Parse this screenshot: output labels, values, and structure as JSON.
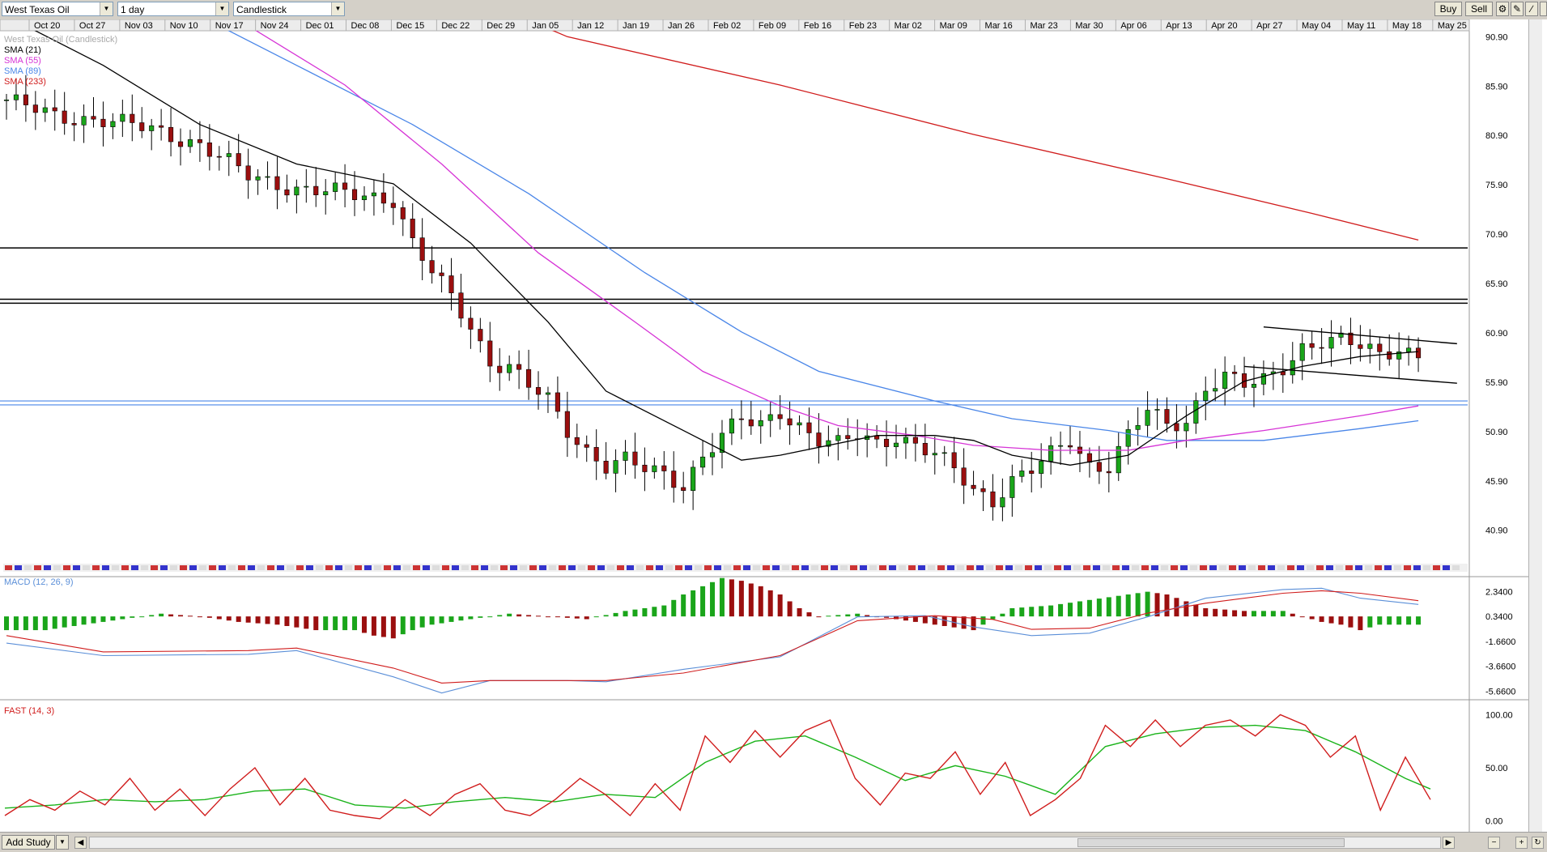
{
  "toolbar": {
    "instrument": "West Texas Oil",
    "interval": "1 day",
    "chart_style": "Candlestick",
    "buy_label": "Buy",
    "sell_label": "Sell",
    "icons": [
      "gear-icon",
      "pencil-icon",
      "arrow-icon",
      "slash-icon",
      "cursor-icon"
    ]
  },
  "bottom": {
    "add_study_label": "Add Study"
  },
  "colors": {
    "up": "#1aa51a",
    "down": "#9b0f0f",
    "sma21": "#000000",
    "sma55": "#d633d6",
    "sma89": "#4a86e8",
    "sma233": "#d01c1c",
    "macd_line": "#5b8fd8",
    "macd_signal": "#d01c1c",
    "stoch_k": "#d01c1c",
    "stoch_d": "#1ab31a"
  },
  "chart_data": [
    {
      "type": "candlestick",
      "name": "price-pane",
      "title": "West Texas Oil (Candlestick)",
      "legend": [
        "West Texas Oil (Candlestick)",
        "SMA (21)",
        "SMA (55)",
        "SMA (89)",
        "SMA (233)"
      ],
      "xlabels": [
        "Oct 20",
        "Oct 27",
        "Nov 03",
        "Nov 10",
        "Nov 17",
        "Nov 24",
        "Dec 01",
        "Dec 08",
        "Dec 15",
        "Dec 22",
        "Dec 29",
        "Jan 05",
        "Jan 12",
        "Jan 19",
        "Jan 26",
        "Feb 02",
        "Feb 09",
        "Feb 16",
        "Feb 23",
        "Mar 02",
        "Mar 09",
        "Mar 16",
        "Mar 23",
        "Mar 30",
        "Apr 06",
        "Apr 13",
        "Apr 20",
        "Apr 27",
        "May 04",
        "May 11",
        "May 18",
        "May 25"
      ],
      "yticks": [
        "90.90",
        "85.90",
        "80.90",
        "75.90",
        "70.90",
        "65.90",
        "60.90",
        "55.90",
        "50.90",
        "45.90",
        "40.90"
      ],
      "ylim": [
        38.5,
        91.5
      ],
      "close_points": [
        [
          0,
          84.5
        ],
        [
          5,
          82.8
        ],
        [
          10,
          82.5
        ],
        [
          15,
          81.5
        ],
        [
          20,
          80.0
        ],
        [
          25,
          76.8
        ],
        [
          30,
          75.5
        ],
        [
          35,
          75.0
        ],
        [
          40,
          74.5
        ],
        [
          42,
          70.0
        ],
        [
          44,
          67.0
        ],
        [
          46,
          64.5
        ],
        [
          48,
          61.5
        ],
        [
          50,
          58.0
        ],
        [
          52,
          57.5
        ],
        [
          54,
          55.5
        ],
        [
          56,
          54.0
        ],
        [
          58,
          51.0
        ],
        [
          60,
          49.0
        ],
        [
          62,
          47.5
        ],
        [
          64,
          48.0
        ],
        [
          66,
          47.0
        ],
        [
          68,
          46.5
        ],
        [
          70,
          45.5
        ],
        [
          72,
          48.5
        ],
        [
          74,
          50.5
        ],
        [
          76,
          52.0
        ],
        [
          78,
          51.5
        ],
        [
          80,
          53.0
        ],
        [
          82,
          51.5
        ],
        [
          84,
          50.0
        ],
        [
          86,
          49.5
        ],
        [
          88,
          50.5
        ],
        [
          90,
          49.8
        ],
        [
          92,
          50.5
        ],
        [
          94,
          49.5
        ],
        [
          96,
          48.5
        ],
        [
          98,
          47.0
        ],
        [
          100,
          45.0
        ],
        [
          102,
          44.0
        ],
        [
          104,
          46.0
        ],
        [
          106,
          47.0
        ],
        [
          108,
          48.5
        ],
        [
          110,
          50.0
        ],
        [
          112,
          47.5
        ],
        [
          114,
          47.5
        ],
        [
          116,
          50.5
        ],
        [
          118,
          53.0
        ],
        [
          120,
          51.5
        ],
        [
          122,
          52.0
        ],
        [
          124,
          55.5
        ],
        [
          126,
          56.5
        ],
        [
          128,
          55.5
        ],
        [
          130,
          56.0
        ],
        [
          132,
          57.5
        ],
        [
          134,
          59.5
        ],
        [
          136,
          60.0
        ],
        [
          138,
          60.0
        ],
        [
          140,
          59.5
        ],
        [
          142,
          58.8
        ],
        [
          144,
          59.5
        ],
        [
          146,
          58.5
        ]
      ],
      "sma": {
        "sma21": [
          [
            0,
            93
          ],
          [
            10,
            88
          ],
          [
            20,
            82
          ],
          [
            30,
            78
          ],
          [
            40,
            76
          ],
          [
            48,
            70
          ],
          [
            56,
            62
          ],
          [
            62,
            55
          ],
          [
            70,
            51
          ],
          [
            76,
            48
          ],
          [
            80,
            48.5
          ],
          [
            90,
            50.5
          ],
          [
            96,
            50.5
          ],
          [
            100,
            50.0
          ],
          [
            104,
            48.5
          ],
          [
            110,
            47.5
          ],
          [
            116,
            48.5
          ],
          [
            122,
            52.5
          ],
          [
            128,
            56.0
          ],
          [
            134,
            57.5
          ],
          [
            140,
            58.5
          ],
          [
            146,
            59.0
          ]
        ],
        "sma55": [
          [
            0,
            100
          ],
          [
            20,
            95
          ],
          [
            35,
            86
          ],
          [
            45,
            78
          ],
          [
            55,
            69
          ],
          [
            65,
            62
          ],
          [
            72,
            57
          ],
          [
            80,
            53.5
          ],
          [
            86,
            51.5
          ],
          [
            94,
            50.5
          ],
          [
            100,
            49.5
          ],
          [
            108,
            49.0
          ],
          [
            116,
            49.0
          ],
          [
            122,
            50.0
          ],
          [
            130,
            51.0
          ],
          [
            140,
            52.5
          ],
          [
            146,
            53.5
          ]
        ],
        "sma89": [
          [
            0,
            110
          ],
          [
            22,
            92
          ],
          [
            30,
            88
          ],
          [
            42,
            82
          ],
          [
            54,
            75
          ],
          [
            66,
            67
          ],
          [
            76,
            61
          ],
          [
            84,
            57
          ],
          [
            96,
            54
          ],
          [
            104,
            52.2
          ],
          [
            114,
            51.0
          ],
          [
            120,
            50.0
          ],
          [
            130,
            50.0
          ],
          [
            140,
            51.2
          ],
          [
            146,
            52.0
          ]
        ],
        "sma233": [
          [
            0,
            115
          ],
          [
            58,
            90.9
          ],
          [
            80,
            86
          ],
          [
            100,
            81
          ],
          [
            120,
            76.5
          ],
          [
            135,
            73
          ],
          [
            146,
            70.3
          ]
        ]
      },
      "horizontal_lines": [
        69.5,
        64.3,
        63.9,
        54.0,
        53.6
      ],
      "channel": {
        "upper": [
          [
            130,
            61.5
          ],
          [
            150,
            59.8
          ]
        ],
        "lower": [
          [
            128,
            57.5
          ],
          [
            150,
            55.8
          ]
        ]
      }
    },
    {
      "type": "macd",
      "name": "macd-pane",
      "title": "MACD (12, 26, 9)",
      "yticks": [
        "2.3400",
        "0.3400",
        "-1.6600",
        "-3.6600",
        "-5.6600"
      ],
      "ylim": [
        -6.6,
        3.4
      ],
      "macd_line": [
        [
          0,
          -1.8
        ],
        [
          10,
          -2.8
        ],
        [
          25,
          -2.7
        ],
        [
          30,
          -2.4
        ],
        [
          40,
          -4.5
        ],
        [
          45,
          -5.8
        ],
        [
          50,
          -4.8
        ],
        [
          58,
          -4.8
        ],
        [
          62,
          -4.9
        ],
        [
          70,
          -3.9
        ],
        [
          80,
          -2.9
        ],
        [
          88,
          0.3
        ],
        [
          95,
          0.4
        ],
        [
          100,
          -0.5
        ],
        [
          106,
          -1.2
        ],
        [
          112,
          -1.0
        ],
        [
          118,
          0.3
        ],
        [
          124,
          1.8
        ],
        [
          132,
          2.5
        ],
        [
          136,
          2.6
        ],
        [
          140,
          1.8
        ],
        [
          146,
          1.3
        ]
      ],
      "signal_line": [
        [
          0,
          -1.2
        ],
        [
          10,
          -2.5
        ],
        [
          25,
          -2.4
        ],
        [
          30,
          -2.2
        ],
        [
          40,
          -3.8
        ],
        [
          45,
          -5.0
        ],
        [
          50,
          -4.8
        ],
        [
          62,
          -4.8
        ],
        [
          70,
          -4.2
        ],
        [
          80,
          -2.8
        ],
        [
          88,
          0.0
        ],
        [
          96,
          0.4
        ],
        [
          102,
          0.1
        ],
        [
          106,
          -0.7
        ],
        [
          112,
          -0.6
        ],
        [
          118,
          0.6
        ],
        [
          124,
          1.4
        ],
        [
          132,
          2.2
        ],
        [
          136,
          2.4
        ],
        [
          140,
          2.2
        ],
        [
          146,
          1.6
        ]
      ],
      "histogram": [
        [
          0,
          -0.5
        ],
        [
          4,
          -0.5
        ],
        [
          8,
          -0.3
        ],
        [
          12,
          -0.1
        ],
        [
          16,
          0.1
        ],
        [
          20,
          0.0
        ],
        [
          24,
          -0.2
        ],
        [
          28,
          -0.3
        ],
        [
          32,
          -0.5
        ],
        [
          36,
          -0.5
        ],
        [
          38,
          -0.7
        ],
        [
          40,
          -0.8
        ],
        [
          42,
          -0.5
        ],
        [
          44,
          -0.3
        ],
        [
          48,
          -0.1
        ],
        [
          52,
          0.1
        ],
        [
          56,
          0.0
        ],
        [
          60,
          -0.1
        ],
        [
          64,
          0.2
        ],
        [
          68,
          0.4
        ],
        [
          70,
          0.8
        ],
        [
          72,
          1.1
        ],
        [
          74,
          1.4
        ],
        [
          76,
          1.3
        ],
        [
          78,
          1.1
        ],
        [
          80,
          0.8
        ],
        [
          82,
          0.3
        ],
        [
          84,
          0.0
        ],
        [
          88,
          0.1
        ],
        [
          92,
          -0.1
        ],
        [
          96,
          -0.3
        ],
        [
          100,
          -0.5
        ],
        [
          104,
          0.3
        ],
        [
          108,
          0.4
        ],
        [
          112,
          0.6
        ],
        [
          116,
          0.8
        ],
        [
          118,
          0.9
        ],
        [
          120,
          0.8
        ],
        [
          124,
          0.3
        ],
        [
          128,
          0.2
        ],
        [
          132,
          0.2
        ],
        [
          136,
          -0.2
        ],
        [
          138,
          -0.3
        ],
        [
          140,
          -0.5
        ],
        [
          142,
          -0.3
        ],
        [
          146,
          -0.3
        ]
      ]
    },
    {
      "type": "stochastic",
      "name": "stochastic-pane",
      "title": "FAST (14, 3)",
      "yticks": [
        "100.00",
        "50.00",
        "0.00"
      ],
      "ylim": [
        -8,
        108
      ],
      "k_line": [
        [
          0,
          5
        ],
        [
          3,
          20
        ],
        [
          6,
          10
        ],
        [
          9,
          28
        ],
        [
          12,
          15
        ],
        [
          15,
          40
        ],
        [
          18,
          10
        ],
        [
          21,
          30
        ],
        [
          24,
          5
        ],
        [
          27,
          30
        ],
        [
          30,
          50
        ],
        [
          33,
          15
        ],
        [
          36,
          40
        ],
        [
          39,
          10
        ],
        [
          42,
          5
        ],
        [
          45,
          2
        ],
        [
          48,
          20
        ],
        [
          51,
          5
        ],
        [
          54,
          25
        ],
        [
          57,
          35
        ],
        [
          60,
          10
        ],
        [
          63,
          5
        ],
        [
          66,
          20
        ],
        [
          69,
          40
        ],
        [
          72,
          25
        ],
        [
          75,
          5
        ],
        [
          78,
          35
        ],
        [
          81,
          10
        ],
        [
          84,
          80
        ],
        [
          87,
          55
        ],
        [
          90,
          85
        ],
        [
          93,
          60
        ],
        [
          96,
          85
        ],
        [
          99,
          95
        ],
        [
          102,
          40
        ],
        [
          105,
          15
        ],
        [
          108,
          45
        ],
        [
          111,
          40
        ],
        [
          114,
          65
        ],
        [
          117,
          25
        ],
        [
          120,
          55
        ],
        [
          123,
          5
        ],
        [
          126,
          20
        ],
        [
          129,
          40
        ],
        [
          132,
          90
        ],
        [
          135,
          70
        ],
        [
          138,
          95
        ],
        [
          141,
          70
        ],
        [
          144,
          90
        ],
        [
          147,
          95
        ],
        [
          150,
          80
        ],
        [
          153,
          100
        ],
        [
          156,
          90
        ],
        [
          159,
          60
        ],
        [
          162,
          80
        ],
        [
          165,
          10
        ],
        [
          168,
          60
        ],
        [
          171,
          20
        ]
      ],
      "d_line": [
        [
          0,
          12
        ],
        [
          6,
          15
        ],
        [
          12,
          20
        ],
        [
          18,
          18
        ],
        [
          24,
          20
        ],
        [
          30,
          28
        ],
        [
          36,
          30
        ],
        [
          42,
          15
        ],
        [
          48,
          12
        ],
        [
          54,
          18
        ],
        [
          60,
          22
        ],
        [
          66,
          18
        ],
        [
          72,
          25
        ],
        [
          78,
          22
        ],
        [
          84,
          55
        ],
        [
          90,
          75
        ],
        [
          96,
          80
        ],
        [
          102,
          60
        ],
        [
          108,
          38
        ],
        [
          114,
          52
        ],
        [
          120,
          42
        ],
        [
          126,
          25
        ],
        [
          132,
          70
        ],
        [
          138,
          82
        ],
        [
          144,
          88
        ],
        [
          150,
          90
        ],
        [
          156,
          85
        ],
        [
          162,
          65
        ],
        [
          168,
          40
        ],
        [
          171,
          30
        ]
      ]
    }
  ]
}
